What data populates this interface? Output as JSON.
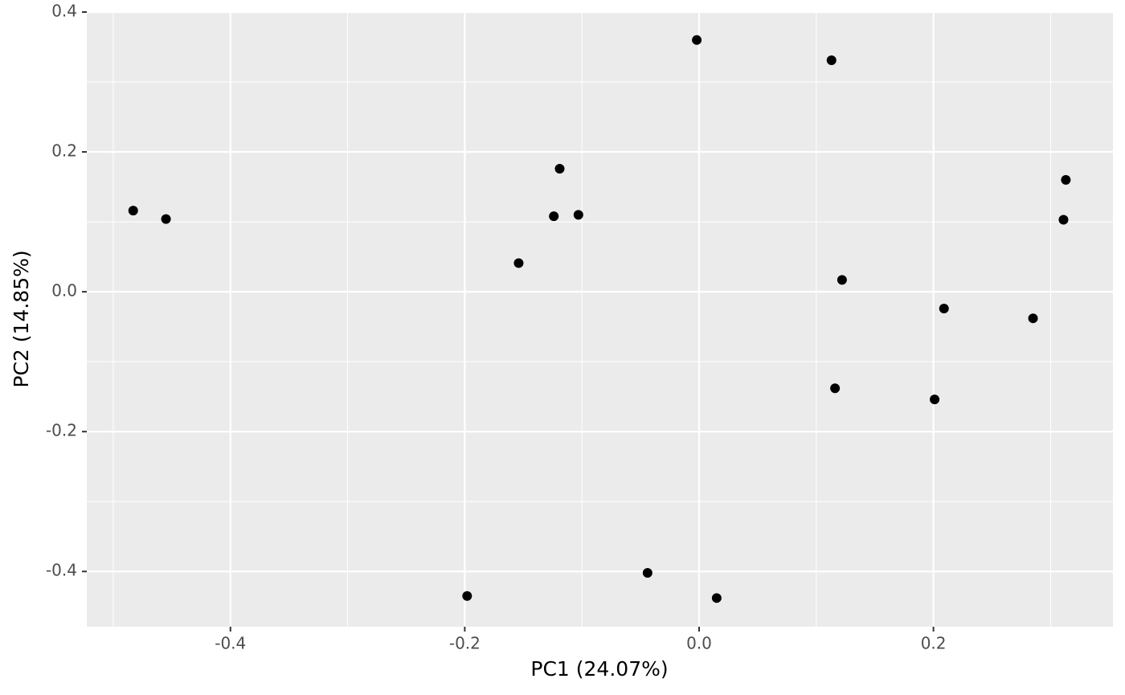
{
  "chart_data": {
    "type": "scatter",
    "x_label": "PC1 (24.07%)",
    "y_label": "PC2 (14.85%)",
    "x": [
      -0.483,
      -0.455,
      -0.198,
      -0.154,
      -0.124,
      -0.119,
      -0.103,
      -0.044,
      -0.002,
      0.015,
      0.113,
      0.116,
      0.122,
      0.201,
      0.209,
      0.285,
      0.311,
      0.313
    ],
    "y": [
      0.116,
      0.104,
      -0.435,
      0.041,
      0.108,
      0.176,
      0.11,
      -0.402,
      0.36,
      -0.438,
      0.331,
      -0.138,
      0.017,
      -0.154,
      -0.024,
      -0.038,
      0.103,
      0.16
    ],
    "color": "#000000",
    "xlim": [
      -0.5226,
      0.3532
    ],
    "ylim": [
      -0.479,
      0.4
    ],
    "xticks": [
      -0.4,
      -0.2,
      {
        "value": 0,
        "label": "0.0"
      },
      0.2
    ],
    "yticks": [
      -0.4,
      -0.2,
      {
        "value": 0,
        "label": "0.0"
      },
      0.2,
      0.4
    ],
    "xminor": [
      -0.5,
      -0.3,
      -0.1,
      0.1,
      0.3
    ],
    "yminor": [
      -0.3,
      -0.1,
      0.1,
      0.3
    ],
    "grid": true
  }
}
